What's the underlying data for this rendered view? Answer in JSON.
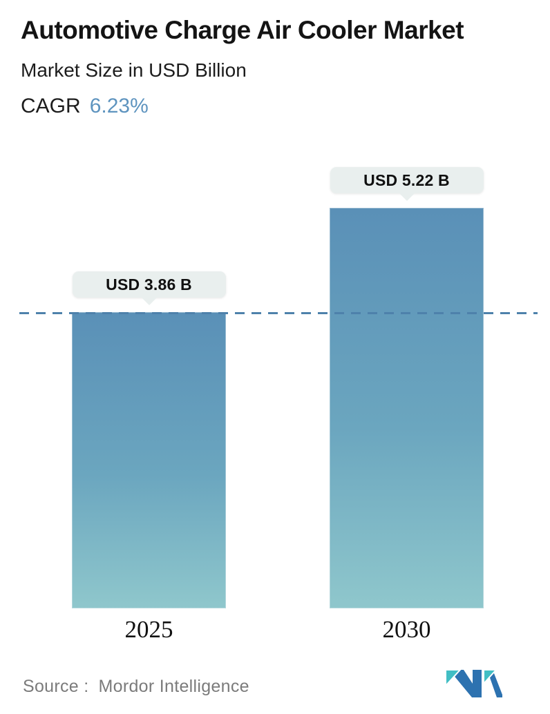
{
  "header": {
    "title": "Automotive Charge Air Cooler Market",
    "subtitle": "Market Size in USD Billion",
    "cagr_label": "CAGR",
    "cagr_value": "6.23%"
  },
  "chart_data": {
    "type": "bar",
    "categories": [
      "2025",
      "2030"
    ],
    "values": [
      3.86,
      5.22
    ],
    "value_labels": [
      "USD 3.86 B",
      "USD 5.22 B"
    ],
    "title": "Automotive Charge Air Cooler Market",
    "ylabel": "Market Size in USD Billion",
    "ylim": [
      0,
      5.25
    ],
    "grid": false,
    "legend": "none",
    "reference_line": {
      "at_value": 3.86,
      "style": "dashed",
      "color": "#4e81ab"
    },
    "bar_gradient_top": "#5a90b7",
    "bar_gradient_bottom": "#8fc7cc"
  },
  "footer": {
    "source_label": "Source :",
    "source_value": "Mordor Intelligence"
  },
  "colors": {
    "accent_blue": "#5e94bf",
    "dashed_line": "#4e81ab",
    "tooltip_bg": "#e9efee",
    "text_dark": "#141414",
    "source_gray": "#7b7b7b",
    "logo_blue": "#2d72b0",
    "logo_teal": "#41bec4"
  }
}
